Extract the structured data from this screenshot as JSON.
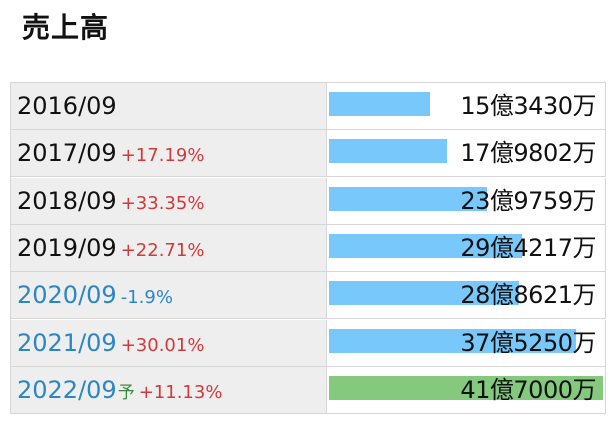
{
  "title": "売上高",
  "colors": {
    "actual_bar": "#78c8fb",
    "forecast_bar": "#84c97e",
    "positive": "#d13a3a",
    "negative": "#2b86c5"
  },
  "forecast_marker": "予",
  "chart_data": {
    "type": "bar",
    "title": "売上高",
    "categories": [
      "2016/09",
      "2017/09",
      "2018/09",
      "2019/09",
      "2020/09",
      "2021/09",
      "2022/09"
    ],
    "values": [
      1534300000,
      1798020000,
      2397590000,
      2942170000,
      2886210000,
      3752500000,
      4170000000
    ],
    "labels": [
      "15億3430万",
      "17億9802万",
      "23億9759万",
      "29億4217万",
      "28億8621万",
      "37億5250万",
      "41億7000万"
    ],
    "growth": [
      "",
      "+17.19%",
      "+33.35%",
      "+22.71%",
      "-1.9%",
      "+30.01%",
      "+11.13%"
    ],
    "forecast": [
      false,
      false,
      false,
      false,
      false,
      false,
      true
    ],
    "future_period": [
      false,
      false,
      false,
      false,
      true,
      true,
      true
    ],
    "ylim": [
      0,
      4170000000
    ]
  }
}
